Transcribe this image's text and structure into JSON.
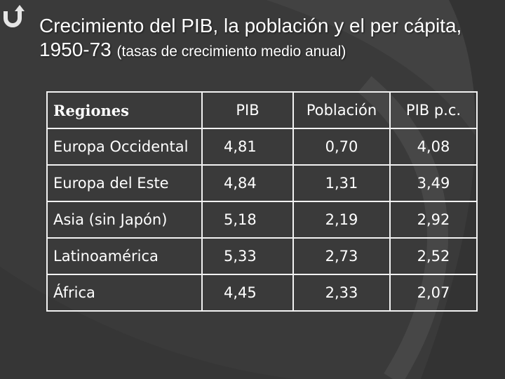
{
  "title": {
    "main": "Crecimiento del PIB, la población y el per cápita, 1950-73",
    "subtitle": "(tasas de crecimiento medio anual)"
  },
  "logo": {
    "icon": "undo-arrow-icon",
    "color": "#e6e6e6"
  },
  "colors": {
    "background": "#3a3a3a",
    "table_border": "#f2f2f2",
    "text": "#ffffff"
  },
  "table": {
    "headers": [
      "Regiones",
      "PIB",
      "Población",
      "PIB p.c."
    ],
    "rows": [
      [
        "Europa Occidental",
        "4,81",
        "0,70",
        "4,08"
      ],
      [
        "Europa del Este",
        "4,84",
        "1,31",
        "3,49"
      ],
      [
        "Asia (sin Japón)",
        "5,18",
        "2,19",
        "2,92"
      ],
      [
        "Latinoamérica",
        "5,33",
        "2,73",
        "2,52"
      ],
      [
        "África",
        "4,45",
        "2,33",
        "2,07"
      ]
    ]
  }
}
